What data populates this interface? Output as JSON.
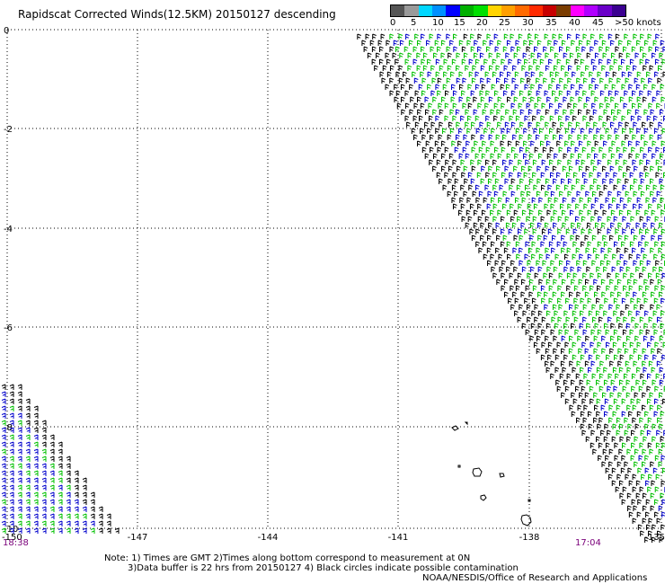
{
  "title": "Rapidscat Corrected Winds(12.5KM) 20150127 descending",
  "legend": {
    "units": "knots",
    "labels": [
      "0",
      "5",
      "10",
      "15",
      "20",
      "25",
      "30",
      "35",
      "40",
      "45",
      ">50"
    ],
    "colors": [
      "#555555",
      "#9a9a9a",
      "#00d7ff",
      "#0090ff",
      "#0000ff",
      "#00b000",
      "#00e000",
      "#ffd400",
      "#ffa000",
      "#ff6a00",
      "#ff2a00",
      "#c80000",
      "#7a3c00",
      "#ff00ff",
      "#b000ff",
      "#6a00c8",
      "#3a0090"
    ]
  },
  "map": {
    "latitude_labels": [
      "0",
      "-2",
      "-4",
      "-6",
      "-8",
      "-10"
    ],
    "longitude_labels": [
      "-150",
      "-147",
      "-144",
      "-141",
      "-138",
      "-135"
    ],
    "barb_colors": {
      "black": "#000000",
      "blue": "#0000cc",
      "green": "#00c000"
    }
  },
  "times": {
    "left": "18:38",
    "right": "17:04"
  },
  "notes": [
    "Note: 1) Times are GMT 2)Times along bottom correspond to measurement at 0N",
    "3)Data buffer is 22 hrs from 20150127 4) Black circles indicate possible contamination",
    "NOAA/NESDIS/Office of Research and Applications"
  ]
}
